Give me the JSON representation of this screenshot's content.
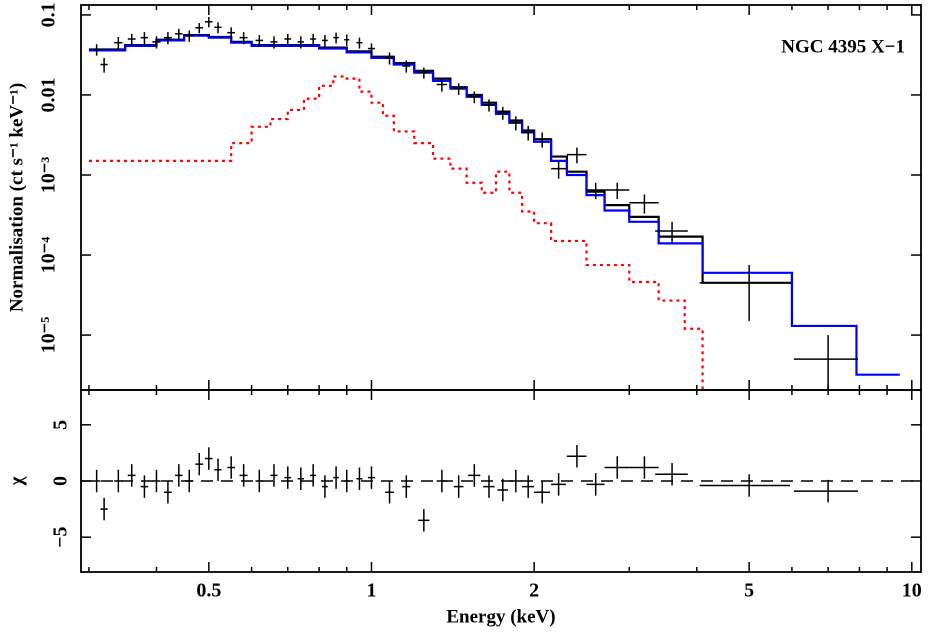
{
  "chart_data": [
    {
      "type": "errorbar",
      "ylabel": "Normalisation (ct s⁻¹ keV⁻¹)",
      "annotation": "NGC 4395 X−1",
      "xlog": true,
      "ylog": true,
      "xlim": [
        0.29,
        10.4
      ],
      "ylim": [
        2.06e-06,
        0.133
      ],
      "xticks": [
        0.5,
        1,
        2,
        5,
        10
      ],
      "xminorticks": [
        0.3,
        0.4,
        0.6,
        0.7,
        0.8,
        0.9,
        3,
        4,
        6,
        7,
        8,
        9
      ],
      "show_xtick_labels": false,
      "yticks": [
        0.1,
        0.01,
        {
          "value": 0.001,
          "label": "10⁻³"
        },
        {
          "value": 0.0001,
          "label": "10⁻⁴"
        },
        {
          "value": 1e-05,
          "label": "10⁻⁵"
        }
      ],
      "series": [
        {
          "style": "step",
          "color": "#ff0000",
          "dash": "dotted",
          "drop": true,
          "bins": [
            0.3,
            0.55,
            0.6,
            0.65,
            0.7,
            0.75,
            0.8,
            0.85,
            0.9,
            0.95,
            1.0,
            1.05,
            1.1,
            1.2,
            1.3,
            1.4,
            1.5,
            1.6,
            1.7,
            1.8,
            1.9,
            2.0,
            2.15,
            2.3,
            2.5,
            2.7,
            3.0,
            3.4,
            3.8,
            4.1
          ],
          "values": [
            0.0015,
            0.0025,
            0.004,
            0.005,
            0.0065,
            0.009,
            0.013,
            0.017,
            0.016,
            0.011,
            0.008,
            0.0055,
            0.0035,
            0.0025,
            0.0016,
            0.0012,
            0.0008,
            0.0006,
            0.0011,
            0.0006,
            0.00035,
            0.00025,
            0.00015,
            0.00015,
            7.5e-05,
            7.5e-05,
            4.6e-05,
            2.7e-05,
            1.2e-05
          ]
        },
        {
          "style": "step",
          "color": "#000000",
          "bins": [
            0.3,
            0.35,
            0.4,
            0.45,
            0.5,
            0.55,
            0.6,
            0.7,
            0.8,
            0.9,
            1.0,
            1.1,
            1.2,
            1.3,
            1.4,
            1.5,
            1.6,
            1.7,
            1.8,
            1.9,
            2.0,
            2.15,
            2.3,
            2.5,
            2.7,
            3.0,
            3.4,
            3.8,
            4.1,
            6.0
          ],
          "values": [
            0.037,
            0.042,
            0.049,
            0.056,
            0.053,
            0.046,
            0.042,
            0.042,
            0.039,
            0.035,
            0.03,
            0.025,
            0.02,
            0.016,
            0.0125,
            0.01,
            0.008,
            0.0062,
            0.0048,
            0.0036,
            0.0028,
            0.0017,
            0.0011,
            0.00062,
            0.00042,
            0.0003,
            0.00017,
            0.00017,
            4.5e-05
          ]
        },
        {
          "style": "step",
          "color": "#0000ff",
          "bins": [
            0.3,
            0.35,
            0.4,
            0.45,
            0.5,
            0.55,
            0.6,
            0.7,
            0.8,
            0.9,
            1.0,
            1.1,
            1.2,
            1.3,
            1.4,
            1.5,
            1.6,
            1.7,
            1.8,
            1.9,
            2.0,
            2.15,
            2.3,
            2.5,
            2.7,
            3.0,
            3.4,
            3.8,
            4.1,
            6.0,
            7.9,
            9.5
          ],
          "values": [
            0.036,
            0.041,
            0.048,
            0.055,
            0.052,
            0.045,
            0.041,
            0.041,
            0.038,
            0.034,
            0.029,
            0.024,
            0.019,
            0.015,
            0.012,
            0.0095,
            0.0075,
            0.0058,
            0.0045,
            0.0034,
            0.0026,
            0.0015,
            0.001,
            0.00056,
            0.00036,
            0.00026,
            0.00014,
            0.00014,
            6e-05,
            1.3e-05,
            3.2e-06
          ]
        },
        {
          "style": "errorbar",
          "color": "#000000",
          "x": [
            0.31,
            0.32,
            0.34,
            0.36,
            0.38,
            0.4,
            0.42,
            0.44,
            0.46,
            0.48,
            0.5,
            0.52,
            0.55,
            0.58,
            0.62,
            0.66,
            0.7,
            0.74,
            0.78,
            0.82,
            0.86,
            0.9,
            0.95,
            1.0,
            1.08,
            1.16,
            1.25,
            1.35,
            1.45,
            1.55,
            1.65,
            1.75,
            1.85,
            1.95,
            2.07,
            2.22,
            2.4,
            2.6,
            2.85,
            3.2,
            3.6,
            5.0,
            7.0
          ],
          "xerr": [
            0.005,
            0.005,
            0.006,
            0.006,
            0.006,
            0.007,
            0.007,
            0.007,
            0.008,
            0.008,
            0.008,
            0.008,
            0.009,
            0.01,
            0.01,
            0.01,
            0.01,
            0.01,
            0.01,
            0.01,
            0.01,
            0.01,
            0.012,
            0.015,
            0.02,
            0.02,
            0.03,
            0.03,
            0.03,
            0.04,
            0.04,
            0.04,
            0.05,
            0.05,
            0.07,
            0.07,
            0.1,
            0.1,
            0.15,
            0.2,
            0.25,
            0.95,
            0.95
          ],
          "values": [
            0.037,
            0.024,
            0.045,
            0.05,
            0.052,
            0.046,
            0.052,
            0.058,
            0.055,
            0.069,
            0.082,
            0.07,
            0.06,
            0.052,
            0.048,
            0.046,
            0.05,
            0.046,
            0.05,
            0.048,
            0.052,
            0.049,
            0.045,
            0.038,
            0.029,
            0.023,
            0.019,
            0.0135,
            0.012,
            0.0095,
            0.0075,
            0.006,
            0.0045,
            0.0034,
            0.0028,
            0.0012,
            0.0018,
            0.00065,
            0.00065,
            0.00045,
            0.0002,
            4.5e-05,
            5e-06
          ],
          "yerr": [
            0.006,
            0.005,
            0.008,
            0.008,
            0.009,
            0.008,
            0.009,
            0.009,
            0.009,
            0.01,
            0.012,
            0.011,
            0.01,
            0.009,
            0.008,
            0.008,
            0.008,
            0.008,
            0.008,
            0.008,
            0.008,
            0.008,
            0.007,
            0.006,
            0.005,
            0.004,
            0.003,
            0.0025,
            0.002,
            0.0016,
            0.0013,
            0.0011,
            0.0009,
            0.0007,
            0.0006,
            0.0003,
            0.0004,
            0.00015,
            0.00015,
            0.00012,
            6e-05,
            3e-05,
            5e-06
          ]
        }
      ]
    },
    {
      "type": "errorbar",
      "xlabel": "Energy (keV)",
      "ylabel": "χ",
      "xlog": true,
      "ylog": false,
      "xlim": [
        0.29,
        10.4
      ],
      "ylim": [
        -8.1,
        8.1
      ],
      "xticks": [
        0.5,
        1,
        2,
        5,
        10
      ],
      "xminorticks": [
        0.3,
        0.4,
        0.6,
        0.7,
        0.8,
        0.9,
        3,
        4,
        6,
        7,
        8,
        9
      ],
      "show_xtick_labels": true,
      "yticks": [
        {
          "value": -5,
          "label": "−5"
        },
        0,
        5
      ],
      "reference_line": 0,
      "series": [
        {
          "style": "errorbar",
          "color": "#000000",
          "x": [
            0.31,
            0.32,
            0.34,
            0.36,
            0.38,
            0.4,
            0.42,
            0.44,
            0.46,
            0.48,
            0.5,
            0.52,
            0.55,
            0.58,
            0.62,
            0.66,
            0.7,
            0.74,
            0.78,
            0.82,
            0.86,
            0.9,
            0.95,
            1.0,
            1.08,
            1.16,
            1.25,
            1.35,
            1.45,
            1.55,
            1.65,
            1.75,
            1.85,
            1.95,
            2.07,
            2.22,
            2.4,
            2.6,
            2.85,
            3.2,
            3.6,
            5.0,
            7.0
          ],
          "xerr": [
            0.005,
            0.005,
            0.006,
            0.006,
            0.006,
            0.007,
            0.007,
            0.007,
            0.008,
            0.008,
            0.008,
            0.008,
            0.009,
            0.01,
            0.01,
            0.01,
            0.01,
            0.01,
            0.01,
            0.01,
            0.01,
            0.01,
            0.012,
            0.015,
            0.02,
            0.02,
            0.03,
            0.03,
            0.03,
            0.04,
            0.04,
            0.04,
            0.05,
            0.05,
            0.07,
            0.07,
            0.1,
            0.1,
            0.15,
            0.2,
            0.25,
            0.95,
            0.95
          ],
          "values": [
            0,
            -2.5,
            0,
            0.5,
            -0.5,
            0,
            -1,
            0.5,
            0,
            1.5,
            2,
            1,
            1.2,
            0.5,
            0,
            0.5,
            0.3,
            0.2,
            0.5,
            -0.5,
            0.3,
            0,
            0.2,
            0.3,
            -1,
            -0.5,
            -3.5,
            0,
            -0.5,
            0.5,
            -0.5,
            -0.8,
            0,
            -0.5,
            -1,
            -0.3,
            2.2,
            -0.3,
            1.2,
            1.2,
            0.6,
            -0.4,
            -0.9
          ],
          "yerr": [
            1,
            1,
            1,
            1,
            1,
            1,
            1,
            1,
            1,
            1,
            1,
            1,
            1,
            1,
            1,
            1,
            1,
            1,
            1,
            1,
            1,
            1,
            1,
            1,
            1,
            1,
            1,
            1,
            1,
            1,
            1,
            1,
            1,
            1,
            1,
            1,
            1,
            1,
            1,
            1,
            1,
            1,
            1
          ]
        }
      ]
    }
  ]
}
